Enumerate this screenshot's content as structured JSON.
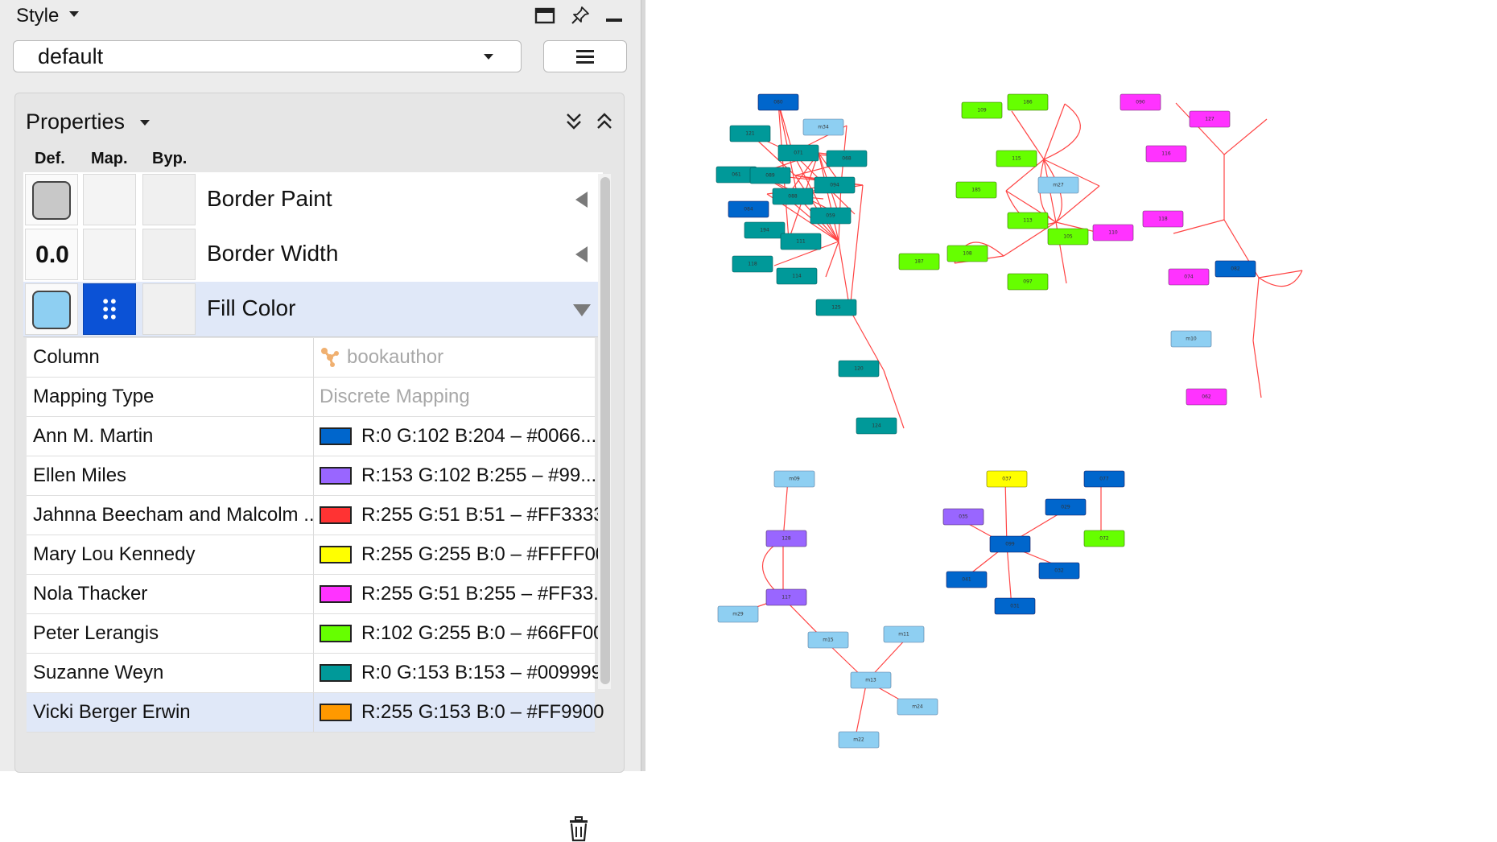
{
  "style_panel": {
    "title": "Style",
    "selected_style": "default",
    "icons": [
      "window-icon",
      "pin-icon",
      "minimize-icon",
      "hamburger-menu-icon"
    ]
  },
  "properties": {
    "title": "Properties",
    "column_headers": {
      "def": "Def.",
      "map": "Map.",
      "byp": "Byp."
    },
    "rows": [
      {
        "label": "Border Paint",
        "default_color": "#c8c8c8"
      },
      {
        "label": "Border Width",
        "default_value": "0.0"
      },
      {
        "label": "Fill Color",
        "default_color": "#8ecff2"
      }
    ],
    "fill_mapping": {
      "column_label": "Column",
      "column_value": "bookauthor",
      "type_label": "Mapping Type",
      "type_value": "Discrete Mapping",
      "entries": [
        {
          "key": "Ann M. Martin",
          "color": "#0066CC",
          "value": "R:0 G:102 B:204 – #0066..."
        },
        {
          "key": "Ellen Miles",
          "color": "#9966FF",
          "value": "R:153 G:102 B:255 – #99..."
        },
        {
          "key": "Jahnna Beecham and Malcolm ...",
          "color": "#FF3333",
          "value": "R:255 G:51 B:51 – #FF3333"
        },
        {
          "key": "Mary Lou Kennedy",
          "color": "#FFFF00",
          "value": "R:255 G:255 B:0 – #FFFF00"
        },
        {
          "key": "Nola Thacker",
          "color": "#FF33FF",
          "value": "R:255 G:51 B:255 – #FF33..."
        },
        {
          "key": "Peter Lerangis",
          "color": "#66FF00",
          "value": "R:102 G:255 B:0 – #66FF00"
        },
        {
          "key": "Suzanne Weyn",
          "color": "#009999",
          "value": "R:0 G:153 B:153 – #009999"
        },
        {
          "key": "Vicki Berger Erwin",
          "color": "#FF9900",
          "value": "R:255 G:153 B:0 – #FF9900"
        }
      ]
    }
  },
  "network": {
    "edge_color": "#ff4444",
    "clusters": [
      {
        "color": "#009999",
        "accent": "#0066CC",
        "light": "#8ecff2",
        "nodes": [
          "080",
          "m34",
          "121",
          "071",
          "068",
          "061",
          "089",
          "094",
          "088",
          "084",
          "059",
          "194",
          "111",
          "118",
          "114",
          "125",
          "120",
          "124"
        ]
      },
      {
        "color": "#66FF00",
        "light": "#8ecff2",
        "nodes": [
          "109",
          "186",
          "115",
          "m27",
          "185",
          "113",
          "105",
          "187",
          "108",
          "097"
        ]
      },
      {
        "color": "#FF33FF",
        "accent": "#0066CC",
        "light": "#8ecff2",
        "nodes": [
          "090",
          "127",
          "116",
          "118",
          "110",
          "074",
          "082",
          "m10",
          "062"
        ]
      },
      {
        "color": "#9966FF",
        "light": "#8ecff2",
        "nodes": [
          "m09",
          "128",
          "117",
          "m29",
          "m15",
          "m11",
          "m13",
          "m24",
          "m22"
        ]
      },
      {
        "color": "#0066CC",
        "accent": "#9966FF",
        "yellow": "#FFFF00",
        "nodes": [
          "037",
          "029",
          "099",
          "035",
          "041",
          "032",
          "031"
        ]
      },
      {
        "color": "#66FF00",
        "accent": "#0066CC",
        "nodes": [
          "077",
          "072"
        ]
      }
    ]
  }
}
